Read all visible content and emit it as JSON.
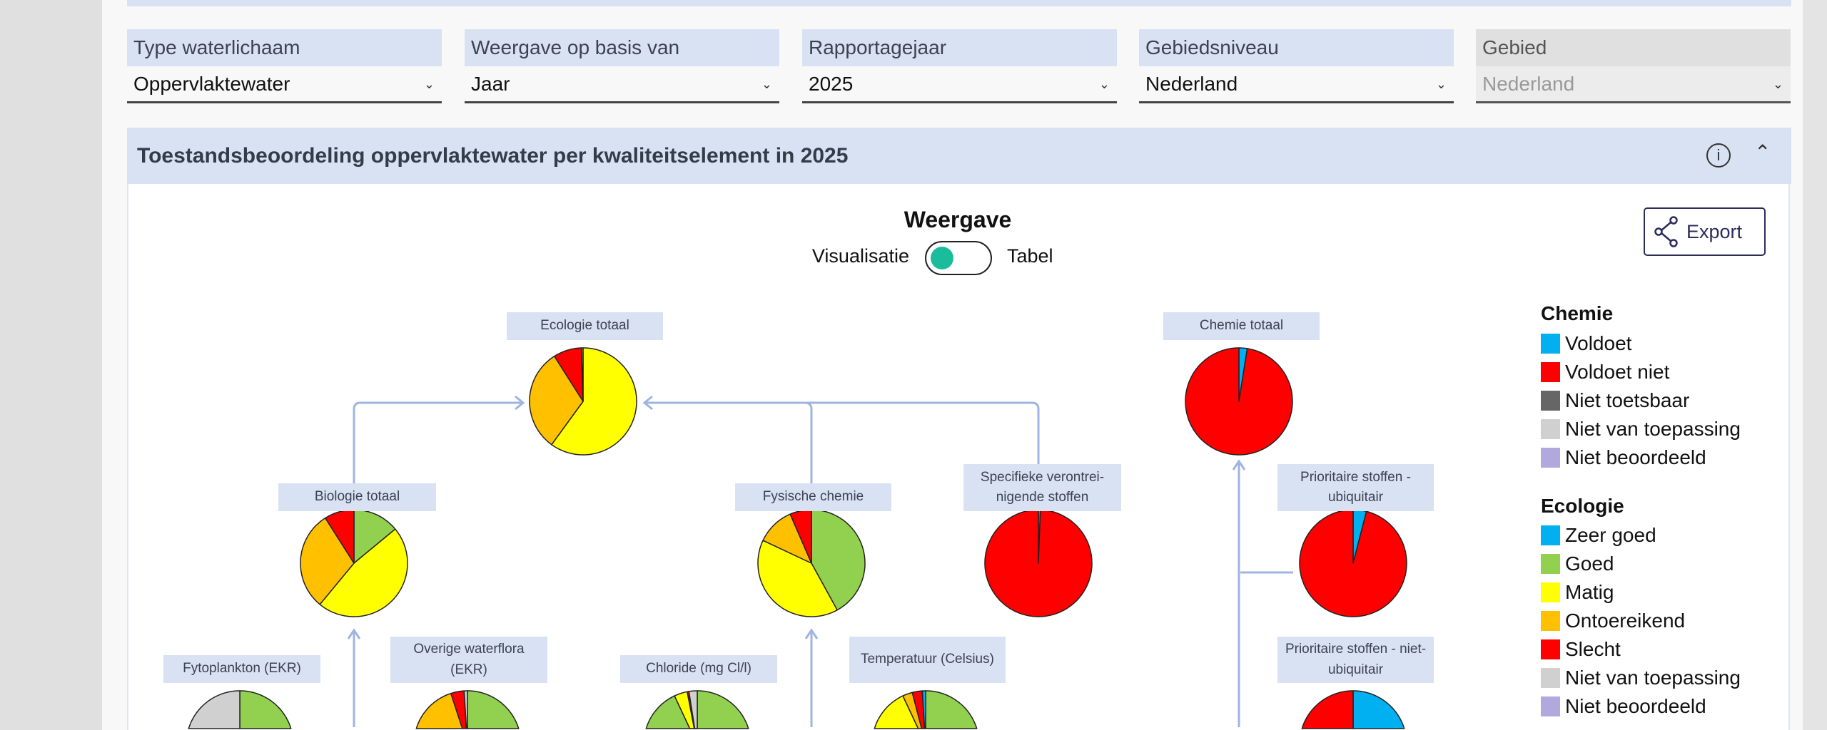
{
  "filters": [
    {
      "label": "Type waterlichaam",
      "value": "Oppervlaktewater",
      "disabled": false
    },
    {
      "label": "Weergave op basis van",
      "value": "Jaar",
      "disabled": false
    },
    {
      "label": "Rapportagejaar",
      "value": "2025",
      "disabled": false
    },
    {
      "label": "Gebiedsniveau",
      "value": "Nederland",
      "disabled": false
    },
    {
      "label": "Gebied",
      "value": "Nederland",
      "disabled": true
    }
  ],
  "section": {
    "title": "Toestandsbeoordeling oppervlaktewater per kwaliteitselement in 2025",
    "info_icon": "info-circle-icon",
    "collapse_icon": "chevron-up-icon"
  },
  "view": {
    "title": "Weergave",
    "option_left": "Visualisatie",
    "option_right": "Tabel",
    "selected": "Visualisatie",
    "toggle_color": "#1abc9c"
  },
  "export": {
    "label": "Export",
    "icon": "share-icon"
  },
  "colors": {
    "Voldoet": "#00b0f0",
    "Voldoet niet": "#ff0000",
    "Niet toetsbaar": "#666666",
    "Niet van toepassing": "#d0d0d0",
    "Niet beoordeeld": "#b1a9dd",
    "Zeer goed": "#00b0f0",
    "Goed": "#92d050",
    "Matig": "#ffff00",
    "Ontoereikend": "#ffc000",
    "Slecht": "#ff0000"
  },
  "legend": {
    "chemie": {
      "title": "Chemie",
      "items": [
        "Voldoet",
        "Voldoet niet",
        "Niet toetsbaar",
        "Niet van toepassing",
        "Niet beoordeeld"
      ]
    },
    "ecologie": {
      "title": "Ecologie",
      "items": [
        "Zeer goed",
        "Goed",
        "Matig",
        "Ontoereikend",
        "Slecht",
        "Niet van toepassing",
        "Niet beoordeeld"
      ]
    }
  },
  "chart_data": {
    "type": "pie",
    "nodes": [
      {
        "id": "ecologie-totaal",
        "label": "Ecologie totaal",
        "slices": [
          {
            "name": "Matig",
            "value": 0.6
          },
          {
            "name": "Ontoereikend",
            "value": 0.31
          },
          {
            "name": "Slecht",
            "value": 0.085
          },
          {
            "name": "Goed",
            "value": 0.005
          }
        ]
      },
      {
        "id": "chemie-totaal",
        "label": "Chemie totaal",
        "slices": [
          {
            "name": "Voldoet",
            "value": 0.025
          },
          {
            "name": "Voldoet niet",
            "value": 0.975
          }
        ]
      },
      {
        "id": "biologie-totaal",
        "label": "Biologie totaal",
        "slices": [
          {
            "name": "Goed",
            "value": 0.14
          },
          {
            "name": "Matig",
            "value": 0.47
          },
          {
            "name": "Ontoereikend",
            "value": 0.3
          },
          {
            "name": "Slecht",
            "value": 0.09
          }
        ]
      },
      {
        "id": "fysische-chemie",
        "label": "Fysische chemie",
        "slices": [
          {
            "name": "Goed",
            "value": 0.42
          },
          {
            "name": "Matig",
            "value": 0.4
          },
          {
            "name": "Ontoereikend",
            "value": 0.115
          },
          {
            "name": "Slecht",
            "value": 0.065
          }
        ]
      },
      {
        "id": "specifieke-stoffen",
        "label": "Specifieke verontrei-nigende stoffen",
        "slices": [
          {
            "name": "Zeer goed",
            "value": 0.006
          },
          {
            "name": "Slecht",
            "value": 0.994
          }
        ]
      },
      {
        "id": "prioritaire-ubiquitair",
        "label": "Prioritaire stoffen - ubiquitair",
        "slices": [
          {
            "name": "Voldoet",
            "value": 0.04
          },
          {
            "name": "Voldoet niet",
            "value": 0.96
          }
        ]
      },
      {
        "id": "fytoplankton",
        "label": "Fytoplankton (EKR)",
        "slices": [
          {
            "name": "Goed",
            "value": 0.5
          },
          {
            "name": "Niet van toepassing",
            "value": 0.5
          }
        ]
      },
      {
        "id": "overige-waterflora",
        "label": "Overige waterflora (EKR)",
        "slices": [
          {
            "name": "Goed",
            "value": 0.55
          },
          {
            "name": "Matig",
            "value": 0.05
          },
          {
            "name": "Ontoereikend",
            "value": 0.35
          },
          {
            "name": "Slecht",
            "value": 0.04
          },
          {
            "name": "Niet van toepassing",
            "value": 0.01
          }
        ]
      },
      {
        "id": "chloride",
        "label": "Chloride (mg Cl/l)",
        "slices": [
          {
            "name": "Goed",
            "value": 0.93
          },
          {
            "name": "Matig",
            "value": 0.04
          },
          {
            "name": "Slecht",
            "value": 0.005
          },
          {
            "name": "Niet van toepassing",
            "value": 0.025
          }
        ]
      },
      {
        "id": "temperatuur",
        "label": "Temperatuur (Celsius)",
        "slices": [
          {
            "name": "Goed",
            "value": 0.68
          },
          {
            "name": "Matig",
            "value": 0.25
          },
          {
            "name": "Ontoereikend",
            "value": 0.03
          },
          {
            "name": "Slecht",
            "value": 0.03
          },
          {
            "name": "Zeer goed",
            "value": 0.01
          }
        ]
      },
      {
        "id": "prioritaire-niet-ubiquitair",
        "label": "Prioritaire stoffen - niet-ubiquitair",
        "slices": [
          {
            "name": "Voldoet",
            "value": 0.5
          },
          {
            "name": "Voldoet niet",
            "value": 0.5
          }
        ]
      }
    ]
  }
}
